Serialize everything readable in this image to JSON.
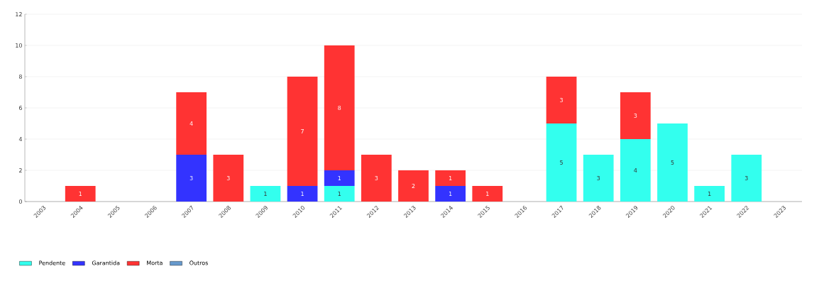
{
  "chart_data": {
    "type": "bar",
    "stacked": true,
    "categories": [
      "2003",
      "2004",
      "2005",
      "2006",
      "2007",
      "2008",
      "2009",
      "2010",
      "2011",
      "2012",
      "2013",
      "2014",
      "2015",
      "2016",
      "2017",
      "2018",
      "2019",
      "2020",
      "2021",
      "2022",
      "2023"
    ],
    "series": [
      {
        "name": "Pendente",
        "color": "#33ffee",
        "values": [
          0,
          0,
          0,
          0,
          0,
          0,
          1,
          0,
          1,
          0,
          0,
          0,
          0,
          0,
          5,
          3,
          4,
          5,
          1,
          3,
          0
        ],
        "value_labels": [
          null,
          null,
          null,
          null,
          null,
          null,
          "1",
          null,
          "1",
          null,
          null,
          null,
          null,
          null,
          "5",
          "3",
          "4",
          "5",
          "1",
          "3",
          null
        ]
      },
      {
        "name": "Garantida",
        "color": "#3333ff",
        "values": [
          0,
          0,
          0,
          0,
          3,
          0,
          0,
          1,
          1,
          0,
          0,
          1,
          0,
          0,
          0,
          0,
          0,
          0,
          0,
          0,
          0
        ],
        "value_labels": [
          null,
          null,
          null,
          null,
          "3",
          null,
          null,
          "1",
          "1",
          null,
          null,
          "1",
          null,
          null,
          null,
          null,
          null,
          null,
          null,
          null,
          null
        ]
      },
      {
        "name": "Morta",
        "color": "#ff3333",
        "values": [
          0,
          1,
          0,
          0,
          4,
          3,
          0,
          7,
          8,
          3,
          2,
          1,
          1,
          0,
          3,
          0,
          3,
          0,
          0,
          0,
          0
        ],
        "value_labels": [
          null,
          "1",
          null,
          null,
          "4",
          "3",
          null,
          "7",
          "8",
          "3",
          "2",
          "1",
          "1",
          null,
          "3",
          null,
          "3",
          null,
          null,
          null,
          null
        ]
      },
      {
        "name": "Outros",
        "color": "#6699cc",
        "values": [
          0,
          0,
          0,
          0,
          0,
          0,
          0,
          0,
          0,
          0,
          0,
          0,
          0,
          0,
          0,
          0,
          0,
          0,
          0,
          0,
          0
        ]
      }
    ],
    "ylim": [
      0,
      12
    ],
    "yticks": [
      0,
      2,
      4,
      6,
      8,
      10,
      12
    ],
    "grid": "y",
    "legend": "bottom left"
  }
}
